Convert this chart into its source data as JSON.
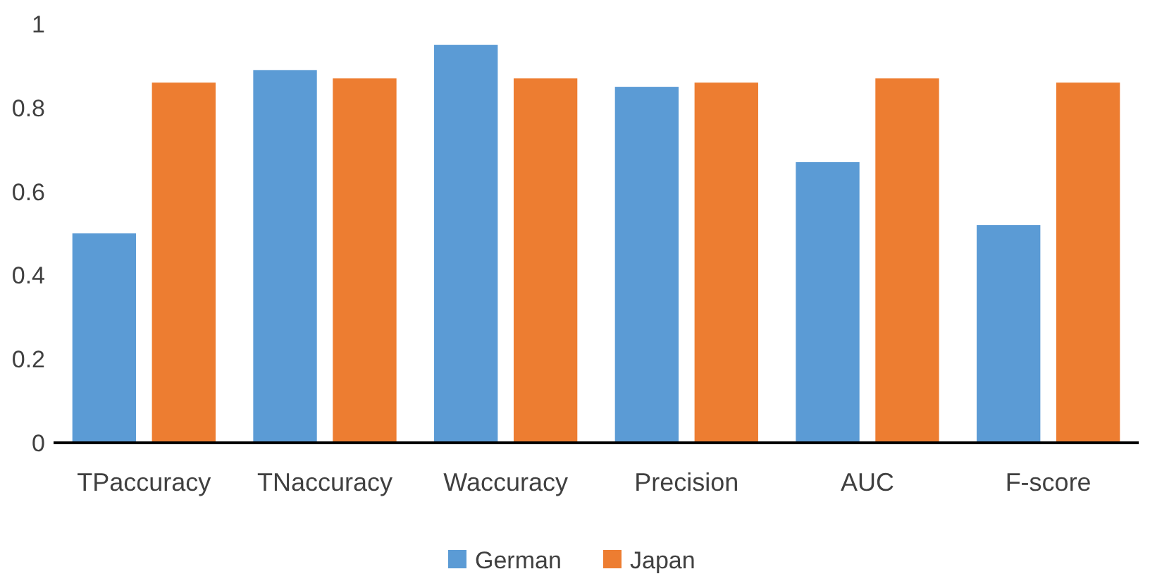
{
  "chart_data": {
    "type": "bar",
    "categories": [
      "TPaccuracy",
      "TNaccuracy",
      "Waccuracy",
      "Precision",
      "AUC",
      "F-score"
    ],
    "series": [
      {
        "name": "German",
        "color": "#5b9bd5",
        "values": [
          0.5,
          0.89,
          0.95,
          0.85,
          0.67,
          0.52
        ]
      },
      {
        "name": "Japan",
        "color": "#ed7d31",
        "values": [
          0.86,
          0.87,
          0.87,
          0.86,
          0.87,
          0.86
        ]
      }
    ],
    "ylim": [
      0,
      1
    ],
    "yticks": [
      0,
      0.2,
      0.4,
      0.6,
      0.8,
      1
    ],
    "grid": false,
    "legend": "bottom"
  }
}
